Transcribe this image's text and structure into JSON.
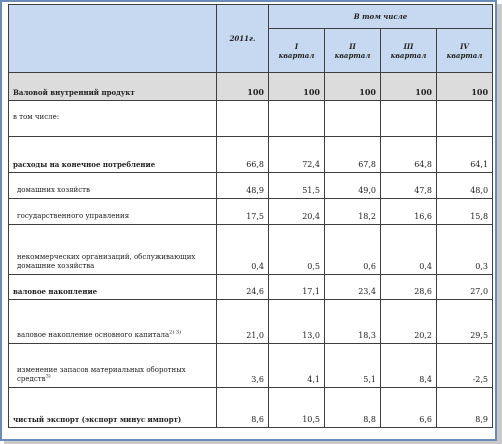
{
  "header": {
    "year": "2011г.",
    "including": "В том числе",
    "quarters": [
      {
        "roman": "I",
        "word": "квартал"
      },
      {
        "roman": "II",
        "word": "квартал"
      },
      {
        "roman": "III",
        "word": "квартал"
      },
      {
        "roman": "IV",
        "word": "квартал"
      }
    ]
  },
  "rows": [
    {
      "label": "Валовой внутренний продукт",
      "values": [
        "100",
        "100",
        "100",
        "100",
        "100"
      ]
    },
    {
      "label": "в том числе:",
      "values": [
        "",
        "",
        "",
        "",
        ""
      ]
    },
    {
      "label": "расходы на конечное потребление",
      "values": [
        "66,8",
        "72,4",
        "67,8",
        "64,8",
        "64,1"
      ]
    },
    {
      "label": "домашних хозяйств",
      "values": [
        "48,9",
        "51,5",
        "49,0",
        "47,8",
        "48,0"
      ]
    },
    {
      "label": "государственного управления",
      "values": [
        "17,5",
        "20,4",
        "18,2",
        "16,6",
        "15,8"
      ]
    },
    {
      "label": "некоммерческих организаций, обслуживающих домашние хозяйства",
      "values": [
        "0,4",
        "0,5",
        "0,6",
        "0,4",
        "0,3"
      ]
    },
    {
      "label": "валовое накопление",
      "values": [
        "24,6",
        "17,1",
        "23,4",
        "28,6",
        "27,0"
      ]
    },
    {
      "label": "валовое накопление основного капитала",
      "sup": "2) 3)",
      "values": [
        "21,0",
        "13,0",
        "18,3",
        "20,2",
        "29,5"
      ]
    },
    {
      "label": "изменение запасов материальных оборотных средств",
      "sup": "3)",
      "values": [
        "3,6",
        "4,1",
        "5,1",
        "8,4",
        "-2,5"
      ]
    },
    {
      "label": "чистый экспорт (экспорт минус импорт)",
      "values": [
        "8,6",
        "10,5",
        "8,8",
        "6,6",
        "8,9"
      ]
    }
  ]
}
